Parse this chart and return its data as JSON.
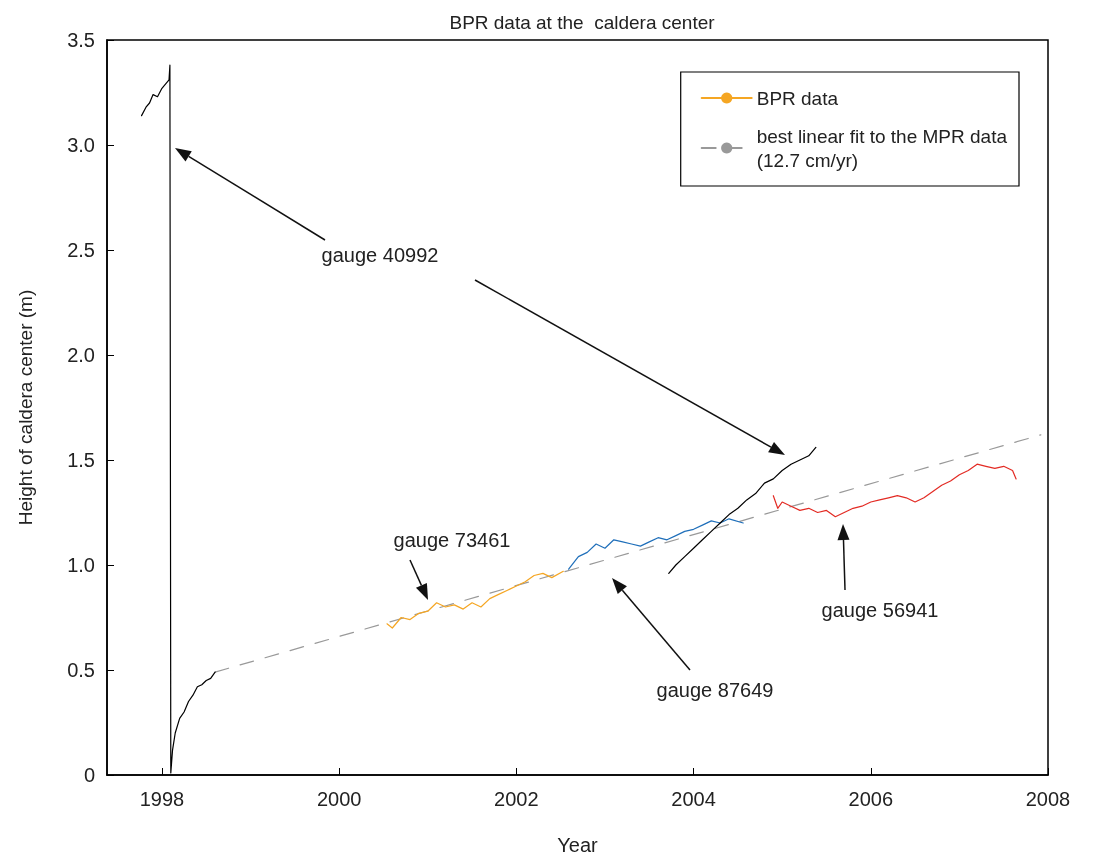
{
  "chart_data": {
    "type": "line",
    "title": "BPR data at the  caldera center",
    "xlabel": "Year",
    "ylabel": "Height of caldera center (m)",
    "xlim": [
      1997.38,
      2008
    ],
    "xticks": [
      1998,
      2000,
      2002,
      2004,
      2006,
      2008
    ],
    "ylim": [
      0,
      3.5
    ],
    "yticks": [
      0,
      {
        "value": 0.5,
        "label": "0.5"
      },
      {
        "value": 1,
        "label": "1.0"
      },
      {
        "value": 1.5,
        "label": "1.5"
      },
      {
        "value": 2,
        "label": "2.0"
      },
      {
        "value": 2.5,
        "label": "2.5"
      },
      {
        "value": 3,
        "label": "3.0"
      },
      {
        "value": 3.5,
        "label": "3.5"
      }
    ],
    "grid": false,
    "legend": "top right",
    "marker": "none",
    "line_style": "solid",
    "series": [
      {
        "color": "#000000",
        "x": [
          1997.77,
          1997.82,
          1997.86,
          1997.9,
          1997.95,
          1998.0,
          1998.04,
          1998.08,
          1998.09,
          1998.1,
          1998.12,
          1998.15,
          1998.2,
          1998.25,
          1998.3,
          1998.35,
          1998.4,
          1998.45,
          1998.5,
          1998.55,
          1998.6
        ],
        "values": [
          3.14,
          3.18,
          3.2,
          3.24,
          3.23,
          3.27,
          3.29,
          3.31,
          3.38,
          0.01,
          0.12,
          0.2,
          0.27,
          0.3,
          0.35,
          0.38,
          0.42,
          0.43,
          0.45,
          0.46,
          0.49
        ]
      },
      {
        "name": "BPR data",
        "color": "#f5a623",
        "x": [
          2000.54,
          2000.6,
          2000.7,
          2000.8,
          2000.9,
          2001.0,
          2001.1,
          2001.2,
          2001.3,
          2001.4,
          2001.5,
          2001.6,
          2001.7,
          2001.8,
          2001.9,
          2002.0,
          2002.1,
          2002.2,
          2002.3,
          2002.4,
          2002.53
        ],
        "values": [
          0.72,
          0.7,
          0.75,
          0.74,
          0.77,
          0.78,
          0.82,
          0.8,
          0.81,
          0.79,
          0.82,
          0.8,
          0.84,
          0.86,
          0.88,
          0.9,
          0.92,
          0.95,
          0.96,
          0.94,
          0.97
        ]
      },
      {
        "color": "#1f6fba",
        "x": [
          2002.59,
          2002.7,
          2002.8,
          2002.9,
          2003.0,
          2003.1,
          2003.2,
          2003.3,
          2003.4,
          2003.5,
          2003.6,
          2003.7,
          2003.8,
          2003.9,
          2004.0,
          2004.1,
          2004.2,
          2004.3,
          2004.4,
          2004.56
        ],
        "values": [
          0.98,
          1.04,
          1.06,
          1.1,
          1.08,
          1.12,
          1.11,
          1.1,
          1.09,
          1.11,
          1.13,
          1.12,
          1.14,
          1.16,
          1.17,
          1.19,
          1.21,
          1.2,
          1.22,
          1.2
        ]
      },
      {
        "color": "#000000",
        "x": [
          2003.72,
          2003.8,
          2003.9,
          2004.0,
          2004.1,
          2004.2,
          2004.3,
          2004.4,
          2004.5,
          2004.6,
          2004.7,
          2004.8,
          2004.9,
          2005.0,
          2005.1,
          2005.2,
          2005.3,
          2005.38
        ],
        "values": [
          0.96,
          1.0,
          1.04,
          1.08,
          1.12,
          1.16,
          1.2,
          1.24,
          1.27,
          1.31,
          1.34,
          1.39,
          1.41,
          1.45,
          1.48,
          1.5,
          1.52,
          1.56
        ]
      },
      {
        "color": "#e32b24",
        "x": [
          2004.9,
          2004.95,
          2005.0,
          2005.1,
          2005.2,
          2005.3,
          2005.4,
          2005.5,
          2005.6,
          2005.7,
          2005.8,
          2005.9,
          2006.0,
          2006.1,
          2006.2,
          2006.3,
          2006.4,
          2006.5,
          2006.6,
          2006.7,
          2006.8,
          2006.9,
          2007.0,
          2007.1,
          2007.2,
          2007.3,
          2007.4,
          2007.5,
          2007.6,
          2007.64
        ],
        "values": [
          1.33,
          1.27,
          1.3,
          1.28,
          1.26,
          1.27,
          1.25,
          1.26,
          1.23,
          1.25,
          1.27,
          1.28,
          1.3,
          1.31,
          1.32,
          1.33,
          1.32,
          1.3,
          1.32,
          1.35,
          1.38,
          1.4,
          1.43,
          1.45,
          1.48,
          1.47,
          1.46,
          1.47,
          1.45,
          1.41
        ]
      },
      {
        "name": "best linear fit to the MPR data\n(12.7 cm/yr)",
        "color": "#999999",
        "line_style": "dashed",
        "x": [
          1998.6,
          2007.92
        ],
        "values": [
          0.49,
          1.62
        ]
      }
    ],
    "annotations": [
      "gauge 40992",
      "gauge 73461",
      "gauge 87649",
      "gauge 56941"
    ]
  }
}
